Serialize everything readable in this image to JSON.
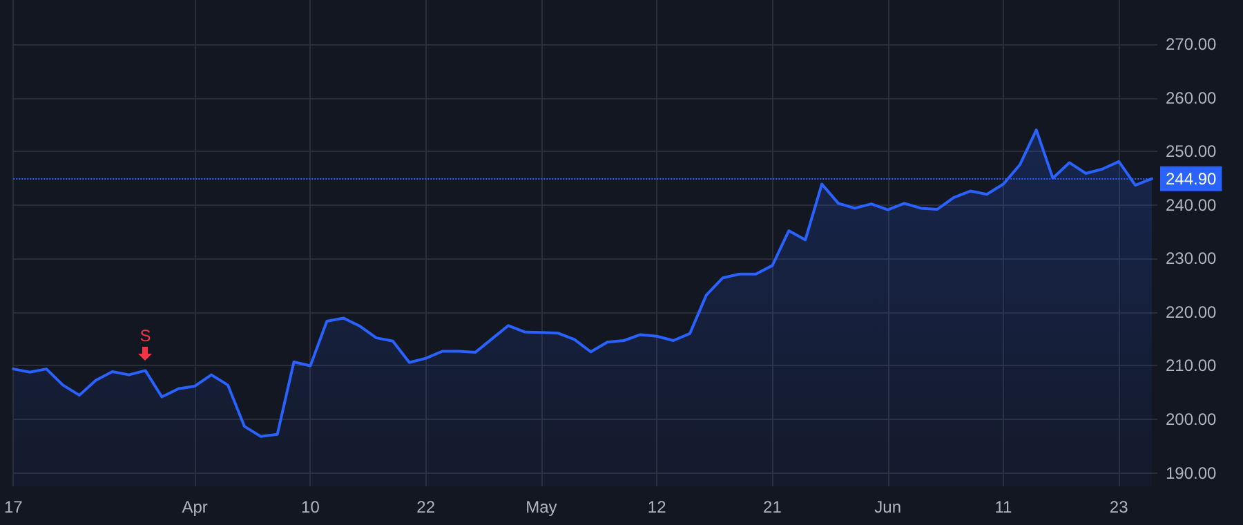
{
  "chart_data": {
    "type": "area",
    "categories": [
      "17",
      null,
      null,
      null,
      null,
      null,
      null,
      null,
      null,
      null,
      null,
      "Apr",
      null,
      null,
      null,
      null,
      null,
      null,
      "10",
      null,
      null,
      null,
      null,
      null,
      null,
      "22",
      null,
      null,
      null,
      null,
      null,
      null,
      "May",
      null,
      null,
      null,
      null,
      null,
      null,
      "12",
      null,
      null,
      null,
      null,
      null,
      null,
      "21",
      null,
      null,
      null,
      null,
      null,
      null,
      "Jun",
      null,
      null,
      null,
      null,
      null,
      null,
      "11",
      null,
      null,
      null,
      null,
      null,
      null,
      "23",
      null,
      null
    ],
    "series": [
      {
        "color": "#2962ff",
        "values": [
          209.4,
          208.8,
          209.4,
          206.4,
          204.5,
          207.3,
          208.9,
          208.3,
          209.1,
          204.2,
          205.7,
          206.2,
          208.3,
          206.4,
          198.7,
          196.8,
          197.2,
          210.7,
          210.0,
          218.3,
          218.9,
          217.4,
          215.2,
          214.6,
          210.6,
          211.4,
          212.7,
          212.7,
          212.5,
          215.0,
          217.5,
          216.3,
          216.2,
          216.1,
          214.9,
          212.6,
          214.4,
          214.7,
          215.8,
          215.5,
          214.7,
          216.0,
          223.2,
          226.4,
          227.1,
          227.1,
          228.7,
          235.2,
          233.5,
          243.9,
          240.3,
          239.4,
          240.2,
          239.1,
          240.3,
          239.4,
          239.2,
          241.4,
          242.6,
          242.0,
          243.9,
          247.5,
          254.0,
          245.0,
          247.9,
          245.9,
          246.7,
          248.1,
          243.7,
          244.9
        ]
      }
    ],
    "ylim": [
      187.5,
      278.25
    ],
    "yticks": [
      {
        "value": 190,
        "label": "190.00"
      },
      {
        "value": 200,
        "label": "200.00"
      },
      {
        "value": 210,
        "label": "210.00"
      },
      {
        "value": 220,
        "label": "220.00"
      },
      {
        "value": 230,
        "label": "230.00"
      },
      {
        "value": 240,
        "label": "240.00"
      },
      {
        "value": 250,
        "label": "250.00"
      },
      {
        "value": 260,
        "label": "260.00"
      },
      {
        "value": 270,
        "label": "270.00"
      }
    ],
    "ref_lines": [
      {
        "axis": "y",
        "value": 244.9,
        "label": "244.90",
        "color": "#2962ff",
        "line_style": "dotted"
      }
    ],
    "annotations": [
      {
        "text": "S",
        "y": 209.1
      }
    ],
    "grid": true,
    "marker": "none",
    "line_style": "solid"
  }
}
